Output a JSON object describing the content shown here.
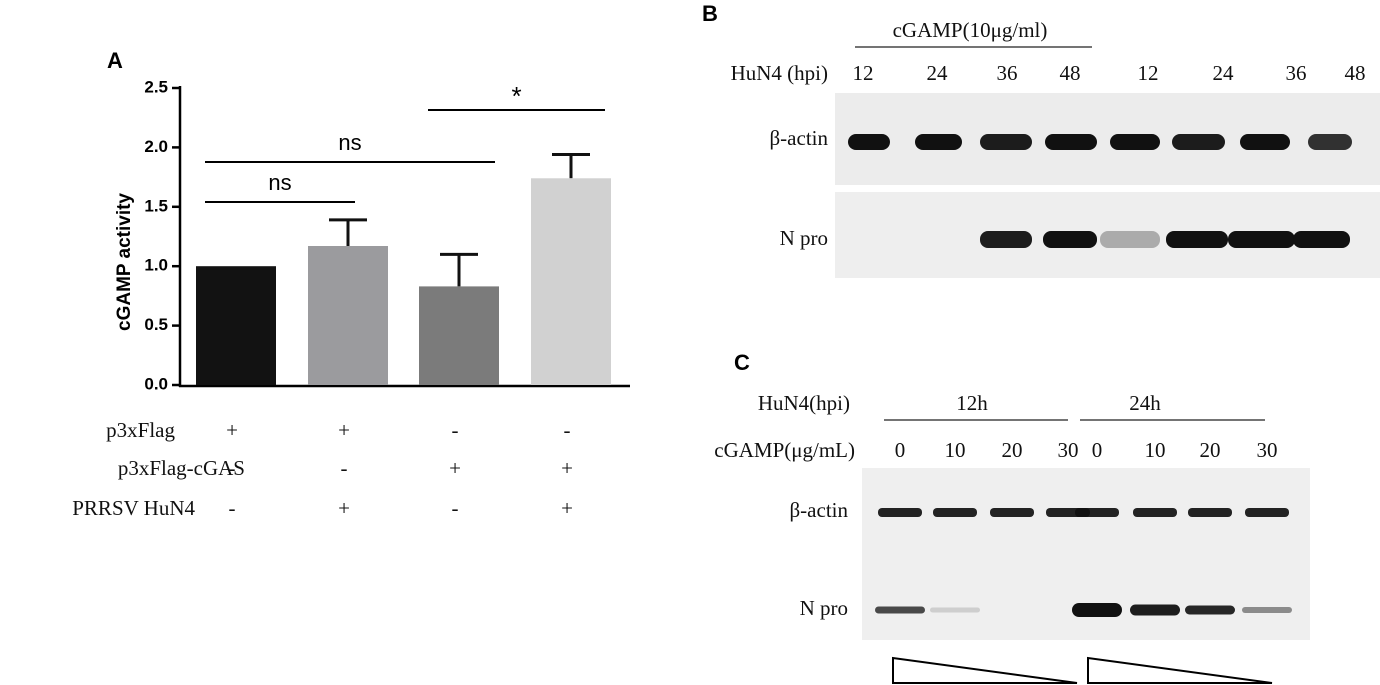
{
  "chart_data": {
    "type": "bar",
    "panel_label": "A",
    "ylabel": "cGAMP activity",
    "categories": [
      null,
      null,
      null,
      null
    ],
    "values": [
      1.0,
      1.17,
      0.83,
      1.74
    ],
    "errors": [
      0,
      0.22,
      0.27,
      0.2
    ],
    "colors": [
      "#121212",
      "#9b9b9e",
      "#7b7b7b",
      "#d1d1d1"
    ],
    "ylim": [
      0,
      2.5
    ],
    "yticks": [
      {
        "value": 0,
        "label": "0.0"
      },
      {
        "value": 0.5,
        "label": "0.5"
      },
      {
        "value": 1,
        "label": "1.0"
      },
      {
        "value": 1.5,
        "label": "1.5"
      },
      {
        "value": 2,
        "label": "2.0"
      },
      {
        "value": 2.5,
        "label": "2.5"
      }
    ],
    "annotations": [
      "ns",
      "ns",
      "*"
    ],
    "conditions": [
      {
        "name": "p3xFlag",
        "signs": [
          "+",
          "+",
          "-",
          "-"
        ]
      },
      {
        "name": "p3xFlag-cGAS",
        "signs": [
          "-",
          "-",
          "+",
          "+"
        ]
      },
      {
        "name": "PRRSV  HuN4",
        "signs": [
          "-",
          "+",
          "-",
          "+"
        ]
      }
    ]
  },
  "panel_b": {
    "label": "B",
    "treatment": "cGAMP(10μg/ml)",
    "row_label": "HuN4 (hpi)",
    "timepoints": [
      "12",
      "24",
      "36",
      "48",
      "12",
      "24",
      "36",
      "48"
    ],
    "bands": [
      "β-actin",
      "N pro"
    ]
  },
  "panel_c": {
    "label": "C",
    "row_label": "HuN4(hpi)",
    "groups": [
      "12h",
      "24h"
    ],
    "dose_label": "cGAMP(μg/mL)",
    "doses": [
      "0",
      "10",
      "20",
      "30",
      "0",
      "10",
      "20",
      "30"
    ],
    "bands": [
      "β-actin",
      "N pro"
    ]
  }
}
